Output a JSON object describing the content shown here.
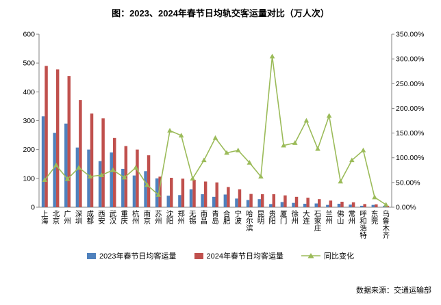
{
  "page": {
    "source_note": "数据来源：交通运输部"
  },
  "chart_data": {
    "type": "bar",
    "subtype": "grouped bars with overlaid line (dual axis)",
    "title": "图：2023、2024年春节日均轨交客运量对比（万人次）",
    "categories": [
      "上海",
      "北京",
      "广州",
      "深圳",
      "成都",
      "西安",
      "武汉",
      "重庆",
      "杭州",
      "南京",
      "苏州",
      "沈阳",
      "郑州",
      "无锡",
      "南昌",
      "青岛",
      "合肥",
      "宁波",
      "哈尔滨",
      "昆明",
      "贵阳",
      "厦门",
      "徐州",
      "大连",
      "石家庄",
      "兰州",
      "佛山",
      "常州",
      "呼和浩特",
      "东莞",
      "乌鲁木齐"
    ],
    "series": [
      {
        "name": "2023年春节日均客运量",
        "type": "bar",
        "axis": "left",
        "color": "#4F81BD",
        "values": [
          315,
          258,
          290,
          207,
          200,
          160,
          190,
          133,
          110,
          125,
          100,
          40,
          42,
          62,
          45,
          36,
          44,
          30,
          25,
          28,
          11,
          18,
          15,
          12,
          13,
          8,
          12,
          9,
          5,
          8,
          5
        ]
      },
      {
        "name": "2024年春节日均客运量",
        "type": "bar",
        "axis": "left",
        "color": "#C0504D",
        "values": [
          490,
          478,
          455,
          372,
          325,
          308,
          240,
          212,
          200,
          180,
          106,
          102,
          99,
          95,
          89,
          86,
          70,
          62,
          46,
          45,
          45,
          41,
          36,
          33,
          28,
          23,
          19,
          17,
          11,
          10,
          5
        ]
      }
    ],
    "line": {
      "name": "同比变化",
      "type": "line",
      "axis": "right",
      "color": "#9BBB59",
      "unit": "%",
      "values": [
        55,
        85,
        57,
        80,
        62,
        65,
        75,
        60,
        80,
        45,
        25,
        155,
        145,
        58,
        95,
        140,
        110,
        115,
        90,
        62,
        305,
        125,
        130,
        175,
        118,
        185,
        52,
        95,
        115,
        20,
        5
      ]
    },
    "left_axis": {
      "min": 0,
      "max": 600,
      "ticks": [
        0,
        100,
        200,
        300,
        400,
        500,
        600
      ]
    },
    "right_axis": {
      "min": 0,
      "max": 350,
      "ticks": [
        0,
        50,
        100,
        150,
        200,
        250,
        300,
        350
      ],
      "format": "percent_2dp"
    },
    "axis_color": "#808080",
    "grid": false,
    "legend_position": "bottom"
  }
}
